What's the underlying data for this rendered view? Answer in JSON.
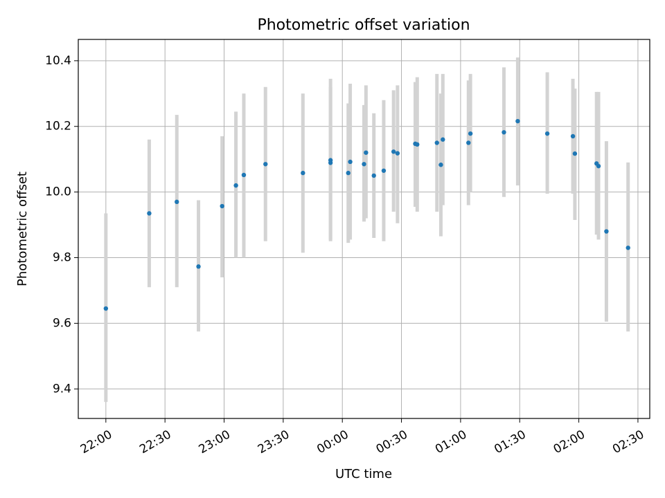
{
  "chart_data": {
    "type": "scatter",
    "title": "Photometric offset variation",
    "xlabel": "UTC time",
    "ylabel": "Photometric offset",
    "xlim": [
      "21:46",
      "02:36"
    ],
    "ylim": [
      9.31,
      10.465
    ],
    "grid": true,
    "x_ticks": [
      "22:00",
      "22:30",
      "23:00",
      "23:30",
      "00:00",
      "00:30",
      "01:00",
      "01:30",
      "02:00",
      "02:30"
    ],
    "y_ticks": [
      "9.4",
      "9.6",
      "9.8",
      "10.0",
      "10.2",
      "10.4"
    ],
    "y_tick_values": [
      9.4,
      9.6,
      9.8,
      10.0,
      10.2,
      10.4
    ],
    "colors": {
      "marker": "#1f77b4",
      "errorbar": "#d3d3d3",
      "grid": "#b0b0b0"
    },
    "series": [
      {
        "points": [
          {
            "t": "22:00",
            "y": 9.645,
            "lo": 9.36,
            "hi": 9.935
          },
          {
            "t": "22:22",
            "y": 9.935,
            "lo": 9.71,
            "hi": 10.16
          },
          {
            "t": "22:36",
            "y": 9.97,
            "lo": 9.71,
            "hi": 10.235
          },
          {
            "t": "22:47",
            "y": 9.773,
            "lo": 9.575,
            "hi": 9.975
          },
          {
            "t": "22:59",
            "y": 9.957,
            "lo": 9.74,
            "hi": 10.17
          },
          {
            "t": "23:06",
            "y": 10.02,
            "lo": 9.8,
            "hi": 10.245
          },
          {
            "t": "23:10",
            "y": 10.052,
            "lo": 9.8,
            "hi": 10.3
          },
          {
            "t": "23:21",
            "y": 10.085,
            "lo": 9.85,
            "hi": 10.32
          },
          {
            "t": "23:40",
            "y": 10.058,
            "lo": 9.815,
            "hi": 10.3
          },
          {
            "t": "23:54",
            "y": 10.097,
            "lo": 9.85,
            "hi": 10.345
          },
          {
            "t": "23:54",
            "y": 10.089,
            "lo": 9.855,
            "hi": 10.32
          },
          {
            "t": "00:03",
            "y": 10.058,
            "lo": 9.845,
            "hi": 10.27
          },
          {
            "t": "00:04",
            "y": 10.092,
            "lo": 9.855,
            "hi": 10.33
          },
          {
            "t": "00:11",
            "y": 10.085,
            "lo": 9.91,
            "hi": 10.265
          },
          {
            "t": "00:12",
            "y": 10.12,
            "lo": 9.92,
            "hi": 10.325
          },
          {
            "t": "00:16",
            "y": 10.05,
            "lo": 9.86,
            "hi": 10.24
          },
          {
            "t": "00:21",
            "y": 10.065,
            "lo": 9.85,
            "hi": 10.28
          },
          {
            "t": "00:26",
            "y": 10.123,
            "lo": 9.94,
            "hi": 10.31
          },
          {
            "t": "00:28",
            "y": 10.118,
            "lo": 9.905,
            "hi": 10.325
          },
          {
            "t": "00:37",
            "y": 10.147,
            "lo": 9.955,
            "hi": 10.335
          },
          {
            "t": "00:38",
            "y": 10.145,
            "lo": 9.94,
            "hi": 10.35
          },
          {
            "t": "00:48",
            "y": 10.15,
            "lo": 9.94,
            "hi": 10.36
          },
          {
            "t": "00:50",
            "y": 10.083,
            "lo": 9.865,
            "hi": 10.3
          },
          {
            "t": "00:51",
            "y": 10.16,
            "lo": 9.96,
            "hi": 10.36
          },
          {
            "t": "01:04",
            "y": 10.15,
            "lo": 9.96,
            "hi": 10.34
          },
          {
            "t": "01:05",
            "y": 10.178,
            "lo": 10.0,
            "hi": 10.36
          },
          {
            "t": "01:22",
            "y": 10.182,
            "lo": 9.985,
            "hi": 10.38
          },
          {
            "t": "01:29",
            "y": 10.216,
            "lo": 10.02,
            "hi": 10.41
          },
          {
            "t": "01:44",
            "y": 10.178,
            "lo": 9.995,
            "hi": 10.365
          },
          {
            "t": "01:57",
            "y": 10.17,
            "lo": 9.995,
            "hi": 10.345
          },
          {
            "t": "01:58",
            "y": 10.117,
            "lo": 9.915,
            "hi": 10.315
          },
          {
            "t": "02:09",
            "y": 10.087,
            "lo": 9.87,
            "hi": 10.305
          },
          {
            "t": "02:10",
            "y": 10.079,
            "lo": 9.855,
            "hi": 10.305
          },
          {
            "t": "02:14",
            "y": 9.88,
            "lo": 9.605,
            "hi": 10.155
          },
          {
            "t": "02:25",
            "y": 9.83,
            "lo": 9.575,
            "hi": 10.09
          }
        ]
      }
    ]
  }
}
